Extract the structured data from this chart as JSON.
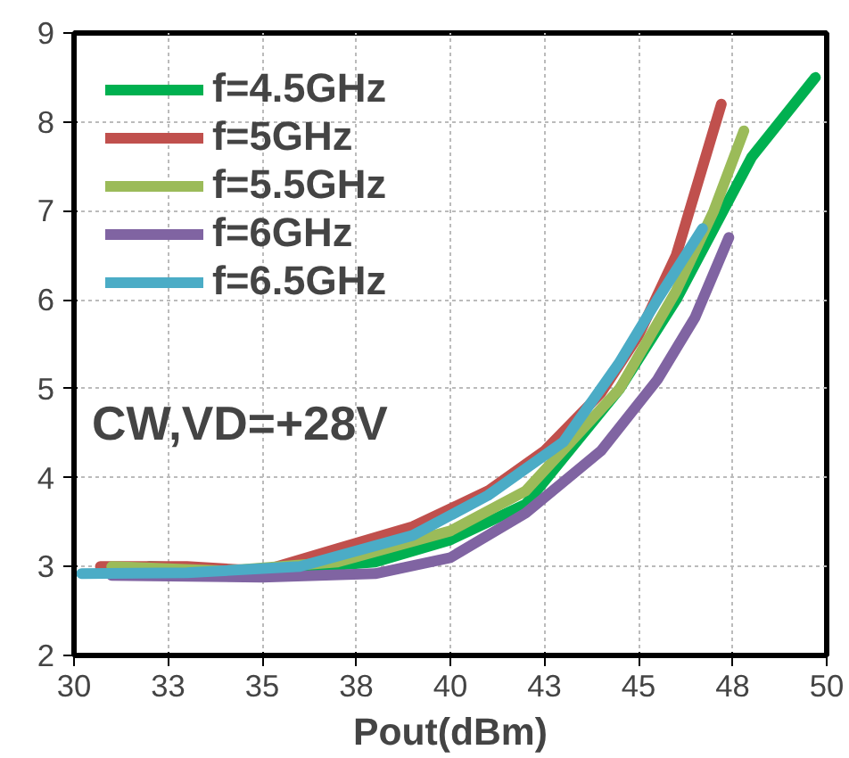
{
  "chart_data": {
    "type": "line",
    "xlabel": "Pout(dBm)",
    "xlim": [
      30,
      50
    ],
    "xticks": [
      30,
      {
        "value": 32.5,
        "label": "33"
      },
      35,
      {
        "value": 37.5,
        "label": "38"
      },
      40,
      {
        "value": 42.5,
        "label": "43"
      },
      45,
      {
        "value": 47.5,
        "label": "48"
      },
      50
    ],
    "ylim": [
      2,
      9
    ],
    "yticks": [
      2,
      3,
      4,
      5,
      6,
      7,
      8,
      9
    ],
    "grid": true,
    "legend": "top left",
    "line_style": "solid",
    "marker": "none",
    "annotations": [
      "CW,VD=+28V"
    ],
    "series": [
      {
        "name": "f=4.5GHz",
        "color": "#00b050",
        "x": [
          32,
          35,
          38,
          40,
          42,
          44.5,
          46,
          47,
          48,
          49.7
        ],
        "values": [
          3.0,
          2.95,
          3.05,
          3.3,
          3.7,
          5.0,
          6.0,
          6.8,
          7.6,
          8.5
        ]
      },
      {
        "name": "f=5GHz",
        "color": "#c0504d",
        "x": [
          30.7,
          33,
          35,
          37,
          39,
          41,
          42.5,
          44,
          45,
          46,
          47.2
        ],
        "values": [
          3.0,
          3.0,
          2.95,
          3.2,
          3.45,
          3.85,
          4.3,
          4.95,
          5.6,
          6.5,
          8.2
        ]
      },
      {
        "name": "f=5.5GHz",
        "color": "#9bbb59",
        "x": [
          31,
          34,
          37,
          40,
          42,
          44.5,
          46,
          47,
          47.8
        ],
        "values": [
          3.0,
          2.95,
          3.05,
          3.4,
          3.85,
          5.0,
          6.1,
          7.0,
          7.9
        ]
      },
      {
        "name": "f=6GHz",
        "color": "#8064a2",
        "x": [
          31,
          35,
          38,
          40,
          42,
          44,
          45.5,
          46.5,
          47.4
        ],
        "values": [
          2.9,
          2.88,
          2.92,
          3.1,
          3.6,
          4.3,
          5.1,
          5.8,
          6.7
        ]
      },
      {
        "name": "f=6.5GHz",
        "color": "#4bacc6",
        "x": [
          30.2,
          33,
          36,
          39,
          41,
          43,
          44.5,
          45.5,
          46.7
        ],
        "values": [
          2.92,
          2.93,
          3.0,
          3.35,
          3.8,
          4.4,
          5.3,
          6.0,
          6.8
        ]
      }
    ]
  }
}
